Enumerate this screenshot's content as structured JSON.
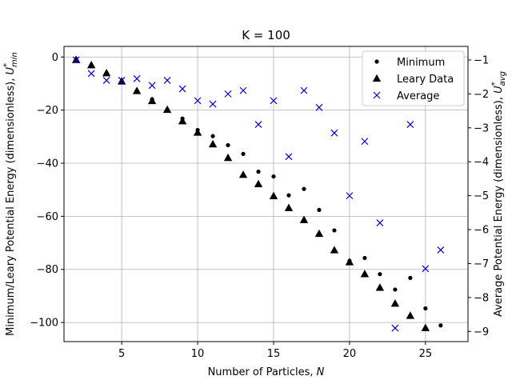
{
  "chart_data": {
    "type": "scatter",
    "title": "K = 100",
    "xlabel": "Number of Particles, N",
    "ylabel_left": "Minimum/Leary Potential Energy (dimensionless), U*min",
    "ylabel_right": "Average Potential Energy (dimensionless), U*avg",
    "xlim": [
      1.2,
      27.8
    ],
    "ylim_left": [
      -107.2,
      4.0
    ],
    "ylim_right": [
      -9.3,
      -0.6
    ],
    "x_ticks": [
      5,
      10,
      15,
      20,
      25
    ],
    "y_left_ticks": [
      0,
      -20,
      -40,
      -60,
      -80,
      -100
    ],
    "y_right_ticks": [
      -1,
      -2,
      -3,
      -4,
      -5,
      -6,
      -7,
      -8,
      -9
    ],
    "grid": true,
    "legend_position": "top-right",
    "colors": {
      "minimum": "#000000",
      "leary": "#000000",
      "average": "#0000cc",
      "right_axis": "#0000cc"
    },
    "series": [
      {
        "name": "Minimum",
        "marker": "dot",
        "axis": "left",
        "x": [
          2,
          3,
          4,
          5,
          6,
          7,
          8,
          9,
          10,
          11,
          12,
          13,
          14,
          15,
          16,
          17,
          18,
          19,
          20,
          21,
          22,
          23,
          24,
          25,
          26
        ],
        "y": [
          -1.0,
          -3.0,
          -6.0,
          -9.1,
          -12.7,
          -15.9,
          -19.8,
          -23.2,
          -27.5,
          -29.8,
          -33.2,
          -36.5,
          -43.2,
          -45.0,
          -52.1,
          -49.7,
          -57.6,
          -65.3,
          -76.8,
          -75.7,
          -81.8,
          -87.6,
          -83.2,
          -94.7,
          -101.1
        ]
      },
      {
        "name": "Leary Data",
        "marker": "triangle",
        "axis": "left",
        "x": [
          2,
          3,
          4,
          5,
          6,
          7,
          8,
          9,
          10,
          11,
          12,
          13,
          14,
          15,
          16,
          17,
          18,
          19,
          20,
          21,
          22,
          23,
          24,
          25
        ],
        "y": [
          -1.0,
          -3.0,
          -6.0,
          -9.1,
          -12.7,
          -16.5,
          -19.8,
          -24.1,
          -28.4,
          -32.8,
          -37.9,
          -44.3,
          -47.8,
          -52.3,
          -56.8,
          -61.3,
          -66.5,
          -72.7,
          -77.2,
          -81.7,
          -86.8,
          -92.8,
          -97.4,
          -102.0
        ]
      },
      {
        "name": "Average",
        "marker": "x",
        "axis": "right",
        "x": [
          2,
          3,
          4,
          5,
          6,
          7,
          8,
          9,
          10,
          11,
          12,
          13,
          14,
          15,
          16,
          17,
          18,
          19,
          20,
          21,
          22,
          23,
          24,
          25,
          26
        ],
        "y": [
          -1.0,
          -1.4,
          -1.6,
          -1.6,
          -1.55,
          -1.75,
          -1.6,
          -1.85,
          -2.2,
          -2.3,
          -2.0,
          -1.9,
          -2.9,
          -2.2,
          -3.85,
          -1.9,
          -2.4,
          -3.15,
          -5.0,
          -3.4,
          -5.8,
          -8.9,
          -2.9,
          -7.15,
          -6.6
        ]
      }
    ]
  }
}
